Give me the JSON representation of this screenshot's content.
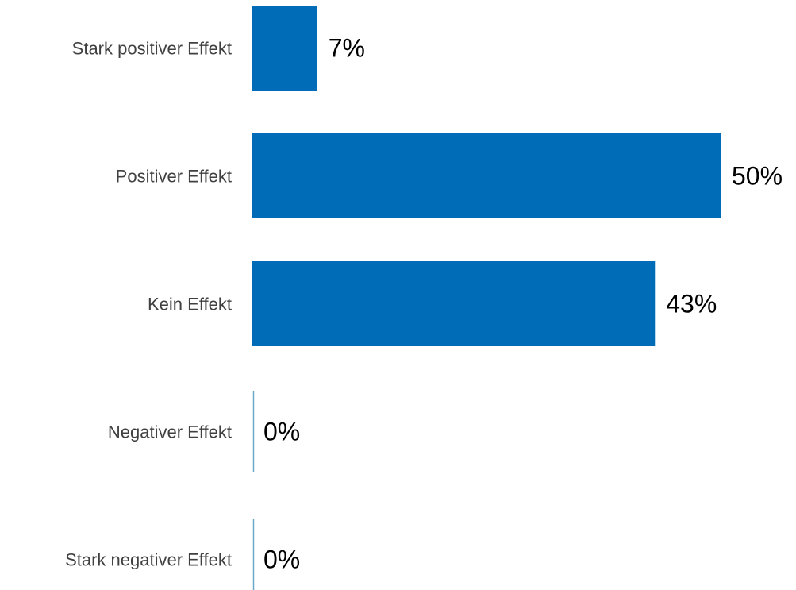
{
  "chart_data": {
    "type": "bar",
    "orientation": "horizontal",
    "title": "",
    "xlabel": "",
    "ylabel": "",
    "categories": [
      "Stark positiver Effekt",
      "Positiver Effekt",
      "Kein Effekt",
      "Negativer Effekt",
      "Stark negativer Effekt"
    ],
    "values": [
      7,
      50,
      43,
      0,
      0
    ],
    "value_labels": [
      "7%",
      "50%",
      "43%",
      "0%",
      "0%"
    ],
    "value_unit": "%",
    "xlim": [
      0,
      50
    ],
    "grid": false,
    "legend": "none",
    "colors": {
      "bar": "#006bb6",
      "baseline": "#6aa9c9",
      "category_text": "#404040",
      "value_text": "#000000"
    }
  }
}
